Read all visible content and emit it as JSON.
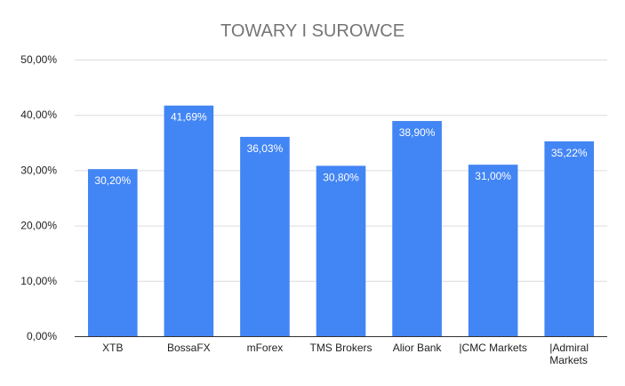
{
  "chart_data": {
    "type": "bar",
    "title": "TOWARY I SUROWCE",
    "xlabel": "",
    "ylabel": "",
    "categories": [
      [
        "XTB"
      ],
      [
        "BossaFX"
      ],
      [
        "mForex"
      ],
      [
        "TMS Brokers"
      ],
      [
        "Alior Bank"
      ],
      [
        "|CMC Markets"
      ],
      [
        "|Admiral",
        "Markets"
      ]
    ],
    "values": [
      30.2,
      41.69,
      36.03,
      30.8,
      38.9,
      31.0,
      35.22
    ],
    "value_labels": [
      "30,20%",
      "41,69%",
      "36,03%",
      "30,80%",
      "38,90%",
      "31,00%",
      "35,22%"
    ],
    "yticks": [
      "0,00%",
      "10,00%",
      "20,00%",
      "30,00%",
      "40,00%",
      "50,00%"
    ],
    "ylim": [
      0,
      50
    ],
    "bar_color": "#4285f4",
    "grid": true,
    "legend": "none"
  }
}
